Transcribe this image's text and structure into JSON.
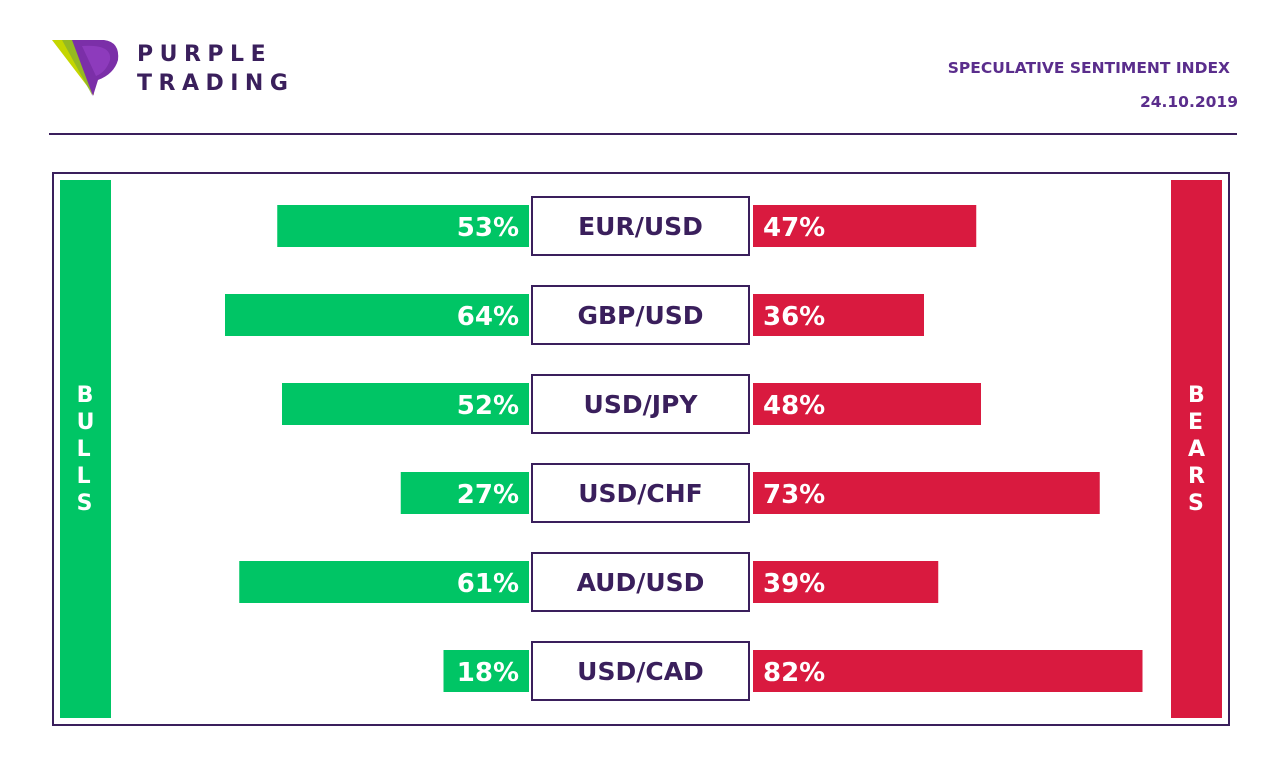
{
  "brand": {
    "line1": "PURPLE",
    "line2": "TRADING"
  },
  "header": {
    "title": "SPECULATIVE SENTIMENT INDEX",
    "date": "24.10.2019"
  },
  "side_labels": {
    "left": "BULLS",
    "right": "BEARS"
  },
  "colors": {
    "bull": "#00c565",
    "bear": "#d91a3f",
    "text": "#3a1f5c",
    "accent": "#5a2d8c"
  },
  "chart_data": {
    "type": "bar",
    "categories": [
      "EUR/USD",
      "GBP/USD",
      "USD/JPY",
      "USD/CHF",
      "AUD/USD",
      "USD/CAD"
    ],
    "series": [
      {
        "name": "BULLS",
        "values": [
          53,
          64,
          52,
          27,
          61,
          18
        ]
      },
      {
        "name": "BEARS",
        "values": [
          47,
          36,
          48,
          73,
          39,
          82
        ]
      }
    ],
    "value_suffix": "%"
  }
}
